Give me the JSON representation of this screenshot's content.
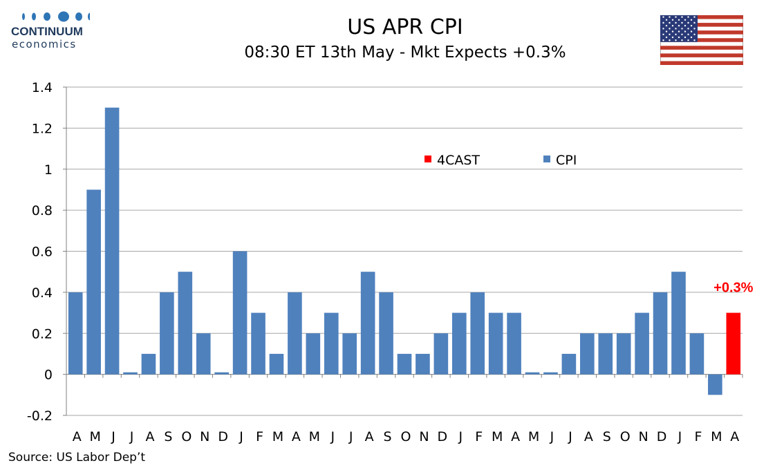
{
  "logo": {
    "name": "CONTINUUM",
    "sub": "economics"
  },
  "title": "US APR CPI",
  "subtitle": "08:30 ET 13th May - Mkt Expects +0.3%",
  "source": "Source: US Labor Dep’t",
  "colors": {
    "cpi": "#4f81bd",
    "forecast": "#ff0000",
    "annotation": "#ff0000"
  },
  "chart_data": {
    "type": "bar",
    "categories": [
      "A",
      "M",
      "J",
      "J",
      "A",
      "S",
      "O",
      "N",
      "D",
      "J",
      "F",
      "M",
      "A",
      "M",
      "J",
      "J",
      "A",
      "S",
      "O",
      "N",
      "D",
      "J",
      "F",
      "M",
      "A",
      "M",
      "J",
      "J",
      "A",
      "S",
      "O",
      "N",
      "D",
      "J",
      "F",
      "M",
      "A"
    ],
    "series": [
      {
        "name": "CPI",
        "values": [
          0.4,
          0.9,
          1.3,
          0.01,
          0.1,
          0.4,
          0.5,
          0.2,
          0.01,
          0.6,
          0.3,
          0.1,
          0.4,
          0.2,
          0.3,
          0.2,
          0.5,
          0.4,
          0.1,
          0.1,
          0.2,
          0.3,
          0.4,
          0.3,
          0.3,
          0.01,
          0.01,
          0.1,
          0.2,
          0.2,
          0.2,
          0.3,
          0.4,
          0.5,
          0.2,
          -0.1,
          null
        ]
      },
      {
        "name": "4CAST",
        "values": [
          null,
          null,
          null,
          null,
          null,
          null,
          null,
          null,
          null,
          null,
          null,
          null,
          null,
          null,
          null,
          null,
          null,
          null,
          null,
          null,
          null,
          null,
          null,
          null,
          null,
          null,
          null,
          null,
          null,
          null,
          null,
          null,
          null,
          null,
          null,
          null,
          0.3
        ]
      }
    ],
    "legend": {
      "items": [
        "4CAST",
        "CPI"
      ],
      "placement": "inside-top-center"
    },
    "annotation": {
      "text": "+0.3%",
      "category_index": 36,
      "value": 0.3
    },
    "ylim": [
      -0.2,
      1.4
    ],
    "yticks": [
      "-0.2",
      "0",
      "0.2",
      "0.4",
      "0.6",
      "0.8",
      "1",
      "1.2",
      "1.4"
    ],
    "ytick_values": [
      -0.2,
      0,
      0.2,
      0.4,
      0.6,
      0.8,
      1,
      1.2,
      1.4
    ],
    "grid": true
  }
}
